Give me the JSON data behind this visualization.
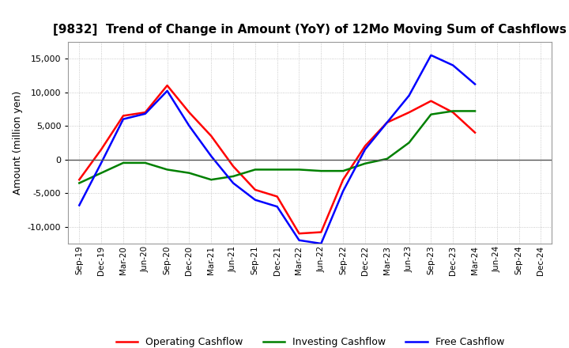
{
  "title": "[9832]  Trend of Change in Amount (YoY) of 12Mo Moving Sum of Cashflows",
  "ylabel": "Amount (million yen)",
  "x_labels": [
    "Sep-19",
    "Dec-19",
    "Mar-20",
    "Jun-20",
    "Sep-20",
    "Dec-20",
    "Mar-21",
    "Jun-21",
    "Sep-21",
    "Dec-21",
    "Mar-22",
    "Jun-22",
    "Sep-22",
    "Dec-22",
    "Mar-23",
    "Jun-23",
    "Sep-23",
    "Dec-23",
    "Mar-24",
    "Jun-24",
    "Sep-24",
    "Dec-24"
  ],
  "operating": [
    -3000,
    1500,
    6500,
    7000,
    11000,
    7000,
    3500,
    -1000,
    -4500,
    -5500,
    -11000,
    -10800,
    -3000,
    2000,
    5500,
    7000,
    8700,
    7000,
    4000,
    null,
    null,
    null
  ],
  "investing": [
    -3500,
    -2000,
    -500,
    -500,
    -1500,
    -2000,
    -3000,
    -2500,
    -1500,
    -1500,
    -1500,
    -1700,
    -1700,
    -600,
    100,
    2500,
    6700,
    7200,
    7200,
    null,
    null,
    null
  ],
  "free": [
    -6800,
    -500,
    6000,
    6800,
    10200,
    5000,
    500,
    -3500,
    -6000,
    -7000,
    -12000,
    -12500,
    -4700,
    1500,
    5500,
    9500,
    15500,
    14000,
    11200,
    null,
    null,
    null
  ],
  "operating_color": "#FF0000",
  "investing_color": "#008000",
  "free_color": "#0000FF",
  "ylim": [
    -12500,
    17500
  ],
  "yticks": [
    -10000,
    -5000,
    0,
    5000,
    10000,
    15000
  ],
  "bg_color": "#FFFFFF",
  "grid_color": "#AAAAAA",
  "zero_line_color": "#555555"
}
